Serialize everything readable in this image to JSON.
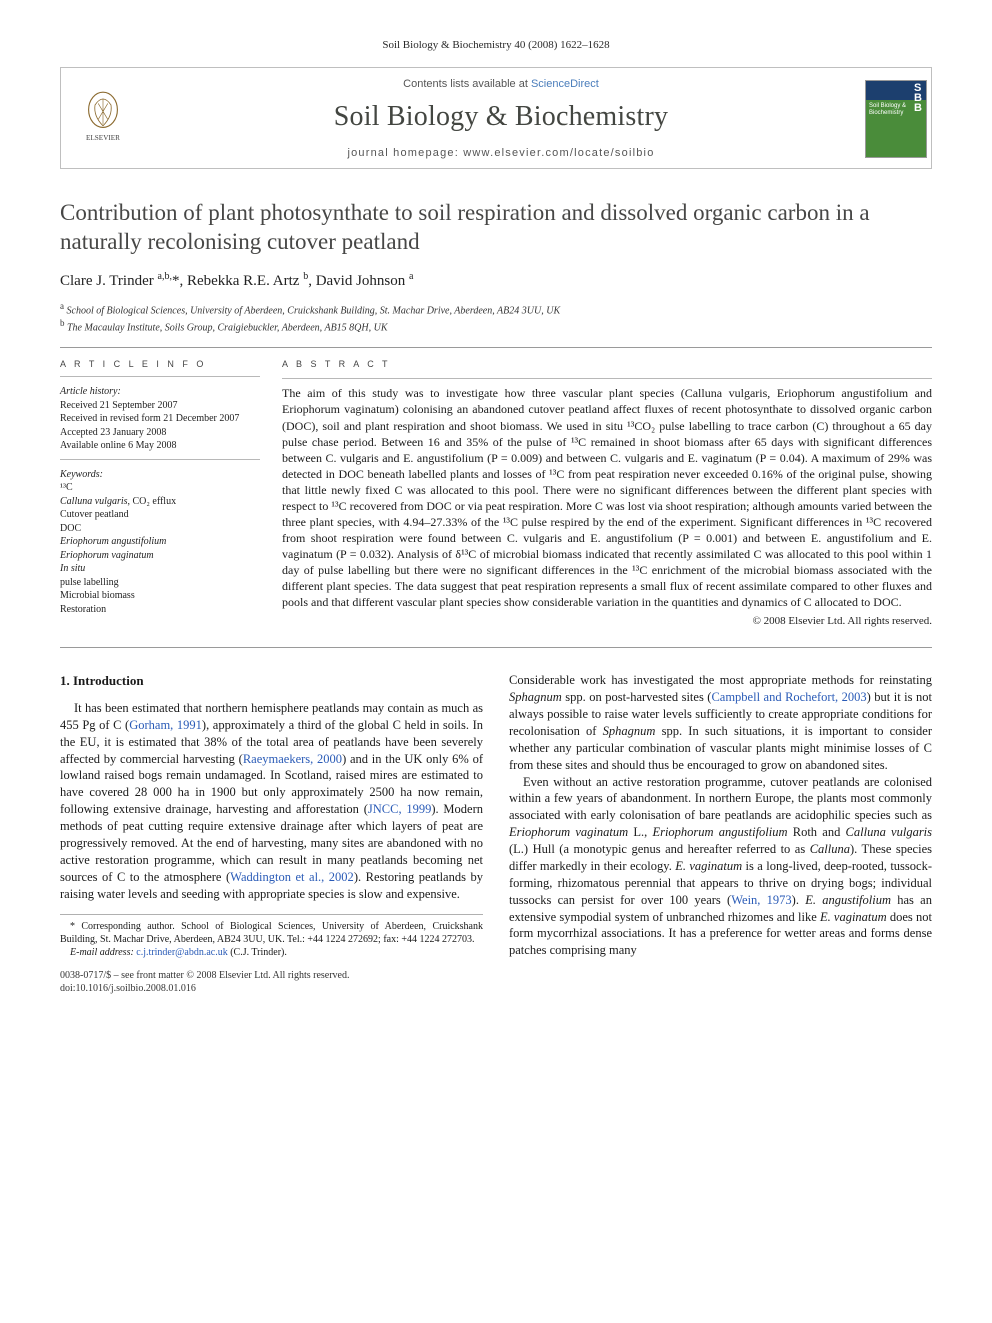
{
  "running_head": "Soil Biology & Biochemistry 40 (2008) 1622–1628",
  "banner": {
    "contents_prefix": "Contents lists available at ",
    "contents_link": "ScienceDirect",
    "journal_name": "Soil Biology & Biochemistry",
    "homepage_prefix": "journal homepage: ",
    "homepage_url": "www.elsevier.com/locate/soilbio",
    "cover_letters": "S\nB\nB",
    "cover_label": "Soil Biology & Biochemistry"
  },
  "title": "Contribution of plant photosynthate to soil respiration and dissolved organic carbon in a naturally recolonising cutover peatland",
  "authors_html": "Clare J. Trinder <sup>a,b,</sup>*, Rebekka R.E. Artz <sup>b</sup>, David Johnson <sup>a</sup>",
  "affiliations": [
    "a School of Biological Sciences, University of Aberdeen, Cruickshank Building, St. Machar Drive, Aberdeen, AB24 3UU, UK",
    "b The Macaulay Institute, Soils Group, Craigiebuckler, Aberdeen, AB15 8QH, UK"
  ],
  "info_heading": "A R T I C L E   I N F O",
  "abstract_heading": "A B S T R A C T",
  "history_label": "Article history:",
  "history": [
    "Received 21 September 2007",
    "Received in revised form 21 December 2007",
    "Accepted 23 January 2008",
    "Available online 6 May 2008"
  ],
  "keywords_label": "Keywords:",
  "keywords": [
    "¹³C",
    "Calluna vulgaris, CO₂ efflux",
    "Cutover peatland",
    "DOC",
    "Eriophorum angustifolium",
    "Eriophorum vaginatum",
    "In situ",
    "pulse labelling",
    "Microbial biomass",
    "Restoration"
  ],
  "abstract": "The aim of this study was to investigate how three vascular plant species (Calluna vulgaris, Eriophorum angustifolium and Eriophorum vaginatum) colonising an abandoned cutover peatland affect fluxes of recent photosynthate to dissolved organic carbon (DOC), soil and plant respiration and shoot biomass. We used in situ ¹³CO₂ pulse labelling to trace carbon (C) throughout a 65 day pulse chase period. Between 16 and 35% of the pulse of ¹³C remained in shoot biomass after 65 days with significant differences between C. vulgaris and E. angustifolium (P = 0.009) and between C. vulgaris and E. vaginatum (P = 0.04). A maximum of 29% was detected in DOC beneath labelled plants and losses of ¹³C from peat respiration never exceeded 0.16% of the original pulse, showing that little newly fixed C was allocated to this pool. There were no significant differences between the different plant species with respect to ¹³C recovered from DOC or via peat respiration. More C was lost via shoot respiration; although amounts varied between the three plant species, with 4.94–27.33% of the ¹³C pulse respired by the end of the experiment. Significant differences in ¹³C recovered from shoot respiration were found between C. vulgaris and E. angustifolium (P = 0.001) and between E. angustifolium and E. vaginatum (P = 0.032). Analysis of δ¹³C of microbial biomass indicated that recently assimilated C was allocated to this pool within 1 day of pulse labelling but there were no significant differences in the ¹³C enrichment of the microbial biomass associated with the different plant species. The data suggest that peat respiration represents a small flux of recent assimilate compared to other fluxes and pools and that different vascular plant species show considerable variation in the quantities and dynamics of C allocated to DOC.",
  "copyright": "© 2008 Elsevier Ltd. All rights reserved.",
  "section_heading": "1. Introduction",
  "col1_p1": "It has been estimated that northern hemisphere peatlands may contain as much as 455 Pg of C (Gorham, 1991), approximately a third of the global C held in soils. In the EU, it is estimated that 38% of the total area of peatlands have been severely affected by commercial harvesting (Raeymaekers, 2000) and in the UK only 6% of lowland raised bogs remain undamaged. In Scotland, raised mires are estimated to have covered 28 000 ha in 1900 but only approximately 2500 ha now remain, following extensive drainage, harvesting and afforestation (JNCC, 1999). Modern methods of peat cutting require extensive drainage after which layers of peat are progressively removed. At the end of harvesting, many sites are abandoned with no active restoration programme, which can result in many peatlands becoming net sources of C to the atmosphere (Waddington et al., 2002). Restoring peatlands by raising water levels and seeding with appropriate species is slow and expensive.",
  "col2_p1": "Considerable work has investigated the most appropriate methods for reinstating Sphagnum spp. on post-harvested sites (Campbell and Rochefort, 2003) but it is not always possible to raise water levels sufficiently to create appropriate conditions for recolonisation of Sphagnum spp. In such situations, it is important to consider whether any particular combination of vascular plants might minimise losses of C from these sites and should thus be encouraged to grow on abandoned sites.",
  "col2_p2": "Even without an active restoration programme, cutover peatlands are colonised within a few years of abandonment. In northern Europe, the plants most commonly associated with early colonisation of bare peatlands are acidophilic species such as Eriophorum vaginatum L., Eriophorum angustifolium Roth and Calluna vulgaris (L.) Hull (a monotypic genus and hereafter referred to as Calluna). These species differ markedly in their ecology. E. vaginatum is a long-lived, deep-rooted, tussock-forming, rhizomatous perennial that appears to thrive on drying bogs; individual tussocks can persist for over 100 years (Wein, 1973). E. angustifolium has an extensive sympodial system of unbranched rhizomes and like E. vaginatum does not form mycorrhizal associations. It has a preference for wetter areas and forms dense patches comprising many",
  "footnote_corr": "* Corresponding author. School of Biological Sciences, University of Aberdeen, Cruickshank Building, St. Machar Drive, Aberdeen, AB24 3UU, UK. Tel.: +44 1224 272692; fax: +44 1224 272703.",
  "footnote_email_label": "E-mail address:",
  "footnote_email": "c.j.trinder@abdn.ac.uk",
  "footnote_email_tail": "(C.J. Trinder).",
  "bottom_meta1": "0038-0717/$ – see front matter © 2008 Elsevier Ltd. All rights reserved.",
  "bottom_meta2": "doi:10.1016/j.soilbio.2008.01.016",
  "colors": {
    "link": "#2a5bb7",
    "rule": "#9a9a9a",
    "journal_name": "#434641",
    "body_text": "#1a1a1a"
  }
}
